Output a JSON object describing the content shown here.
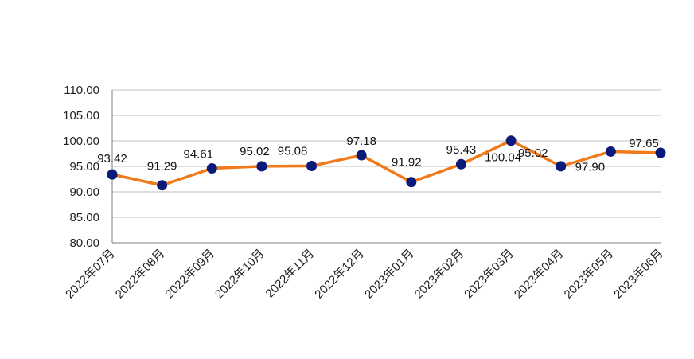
{
  "chart_data": {
    "type": "line",
    "categories": [
      "2022年07月",
      "2022年08月",
      "2022年09月",
      "2022年10月",
      "2022年11月",
      "2022年12月",
      "2023年01月",
      "2023年02月",
      "2023年03月",
      "2023年04月",
      "2023年05月",
      "2023年06月"
    ],
    "series": [
      {
        "values": [
          93.42,
          91.29,
          94.61,
          95.02,
          95.08,
          97.18,
          91.92,
          95.43,
          100.04,
          95.02,
          97.9,
          97.65
        ]
      }
    ],
    "data_labels": [
      "93.42",
      "91.29",
      "94.61",
      "95.02",
      "95.08",
      "97.18",
      "91.92",
      "95.43",
      "100.04",
      "95.02",
      "97.90",
      "97.65"
    ],
    "ylim": [
      80,
      110
    ],
    "y_ticks": [
      "80.00",
      "85.00",
      "90.00",
      "95.00",
      "100.00",
      "105.00",
      "110.00"
    ],
    "grid": true,
    "legend": "none",
    "colors": {
      "line": "#f07a1a",
      "marker": "#0a1a7a",
      "grid": "#bfbfbf",
      "axis": "#7f7f7f"
    }
  }
}
